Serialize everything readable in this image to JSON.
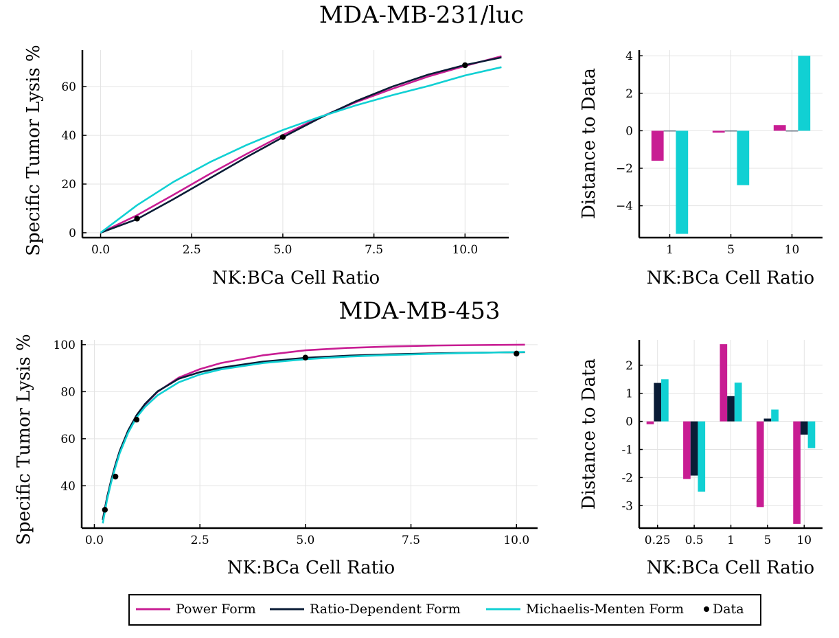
{
  "colors": {
    "power": "#c81d93",
    "ratio": "#0a1c36",
    "mm": "#11d0d3",
    "data": "#000000"
  },
  "legend": {
    "power": "Power Form",
    "ratio": "Ratio-Dependent Form",
    "mm": "Michaelis-Menten Form",
    "data": "Data"
  },
  "chart_data": [
    {
      "type": "line",
      "title": "MDA-MB-231/luc",
      "xlabel": "NK:BCa Cell Ratio",
      "ylabel": "Specific Tumor Lysis %",
      "xlim": [
        -0.5,
        11.2
      ],
      "ylim": [
        -2,
        75
      ],
      "xticks": [
        0,
        2.5,
        5,
        7.5,
        10
      ],
      "xtick_labels": [
        "0.0",
        "2.5",
        "5.0",
        "7.5",
        "10.0"
      ],
      "yticks": [
        0,
        20,
        40,
        60
      ],
      "ytick_labels": [
        "0",
        "20",
        "40",
        "60"
      ],
      "data_points": {
        "x": [
          1,
          5,
          10
        ],
        "y": [
          5.8,
          39.3,
          68.8
        ]
      },
      "series": [
        {
          "name": "Power Form",
          "key": "power",
          "x": [
            0,
            1,
            2,
            3,
            4,
            5,
            6,
            7,
            8,
            9,
            10,
            11
          ],
          "y": [
            0,
            7.2,
            15.6,
            24.2,
            32.3,
            40.1,
            47.3,
            53.6,
            59.1,
            64.2,
            68.5,
            72.5
          ]
        },
        {
          "name": "Ratio-Dependent Form",
          "key": "ratio",
          "x": [
            0,
            1,
            2,
            3,
            4,
            5,
            6,
            7,
            8,
            9,
            10,
            11
          ],
          "y": [
            0,
            5.6,
            13.8,
            22.4,
            31.0,
            39.2,
            47.0,
            54.0,
            60.0,
            65.0,
            68.9,
            72.0
          ]
        },
        {
          "name": "Michaelis-Menten Form",
          "key": "mm",
          "x": [
            0,
            1,
            2,
            3,
            4,
            5,
            6,
            7,
            8,
            9,
            10,
            11
          ],
          "y": [
            0,
            11.3,
            20.9,
            29.0,
            36.0,
            42.2,
            47.5,
            52.3,
            56.5,
            60.3,
            64.6,
            68.0
          ]
        }
      ]
    },
    {
      "type": "bar",
      "title": "",
      "xlabel": "NK:BCa Cell Ratio",
      "ylabel": "Distance to Data",
      "categories": [
        "1",
        "5",
        "10"
      ],
      "ylim": [
        -5.7,
        4.3
      ],
      "yticks": [
        -4,
        -2,
        0,
        2,
        4
      ],
      "ytick_labels": [
        "−4",
        "−2",
        "0",
        "2",
        "4"
      ],
      "series": [
        {
          "name": "Power Form",
          "key": "power",
          "values": [
            -1.6,
            -0.1,
            0.3
          ]
        },
        {
          "name": "Ratio-Dependent Form",
          "key": "ratio",
          "values": [
            0.0,
            0.0,
            0.0
          ]
        },
        {
          "name": "Michaelis-Menten Form",
          "key": "mm",
          "values": [
            -5.5,
            -2.9,
            4.0
          ]
        }
      ]
    },
    {
      "type": "line",
      "title": "MDA-MB-453",
      "xlabel": "NK:BCa Cell Ratio",
      "ylabel": "Specific Tumor Lysis %",
      "xlim": [
        -0.3,
        10.5
      ],
      "ylim": [
        22,
        102
      ],
      "xticks": [
        0,
        2.5,
        5,
        7.5,
        10
      ],
      "xtick_labels": [
        "0.0",
        "2.5",
        "5.0",
        "7.5",
        "10.0"
      ],
      "yticks": [
        40,
        60,
        80,
        100
      ],
      "ytick_labels": [
        "40",
        "60",
        "80",
        "100"
      ],
      "data_points": {
        "x": [
          0.25,
          0.5,
          1,
          5,
          10
        ],
        "y": [
          29.8,
          43.9,
          68.1,
          94.5,
          96.2
        ]
      },
      "series": [
        {
          "name": "Power Form",
          "key": "power",
          "x": [
            0.2,
            0.3,
            0.4,
            0.5,
            0.6,
            0.8,
            1.0,
            1.2,
            1.5,
            2.0,
            2.5,
            3.0,
            4.0,
            5.0,
            6.0,
            7.0,
            8.0,
            9.0,
            10.2
          ],
          "y": [
            25.5,
            35.0,
            42.0,
            49.0,
            54.5,
            63.0,
            69.5,
            74.5,
            80.0,
            86.0,
            89.6,
            92.2,
            95.5,
            97.6,
            98.6,
            99.2,
            99.6,
            99.8,
            100.0
          ]
        },
        {
          "name": "Ratio-Dependent Form",
          "key": "ratio",
          "x": [
            0.2,
            0.3,
            0.4,
            0.5,
            0.6,
            0.8,
            1.0,
            1.2,
            1.5,
            2.0,
            2.5,
            3.0,
            4.0,
            5.0,
            6.0,
            7.0,
            8.0,
            9.0,
            10.2
          ],
          "y": [
            25.5,
            35.0,
            42.5,
            49.0,
            54.8,
            63.5,
            70.0,
            74.8,
            80.2,
            85.5,
            88.3,
            90.2,
            92.8,
            94.4,
            95.3,
            95.9,
            96.3,
            96.6,
            96.8
          ]
        },
        {
          "name": "Michaelis-Menten Form",
          "key": "mm",
          "x": [
            0.2,
            0.3,
            0.4,
            0.5,
            0.6,
            0.8,
            1.0,
            1.2,
            1.5,
            2.0,
            2.5,
            3.0,
            4.0,
            5.0,
            6.0,
            7.0,
            8.0,
            9.0,
            10.2
          ],
          "y": [
            24.0,
            34.0,
            41.5,
            48.0,
            53.8,
            62.5,
            69.0,
            73.5,
            78.5,
            84.0,
            87.3,
            89.5,
            92.2,
            93.8,
            94.9,
            95.6,
            96.1,
            96.5,
            96.9
          ]
        }
      ]
    },
    {
      "type": "bar",
      "title": "",
      "xlabel": "NK:BCa Cell Ratio",
      "ylabel": "Distance to Data",
      "categories": [
        "0.25",
        "0.5",
        "1",
        "5",
        "10"
      ],
      "ylim": [
        -3.8,
        2.9
      ],
      "yticks": [
        -3,
        -2,
        -1,
        0,
        1,
        2
      ],
      "ytick_labels": [
        "-3",
        "-2",
        "-1",
        "0",
        "1",
        "2"
      ],
      "series": [
        {
          "name": "Power Form",
          "key": "power",
          "values": [
            -0.1,
            -2.05,
            2.75,
            -3.05,
            -3.65
          ]
        },
        {
          "name": "Ratio-Dependent Form",
          "key": "ratio",
          "values": [
            1.37,
            -1.93,
            0.9,
            0.1,
            -0.47
          ]
        },
        {
          "name": "Michaelis-Menten Form",
          "key": "mm",
          "values": [
            1.5,
            -2.5,
            1.38,
            0.42,
            -0.95
          ]
        }
      ]
    }
  ]
}
